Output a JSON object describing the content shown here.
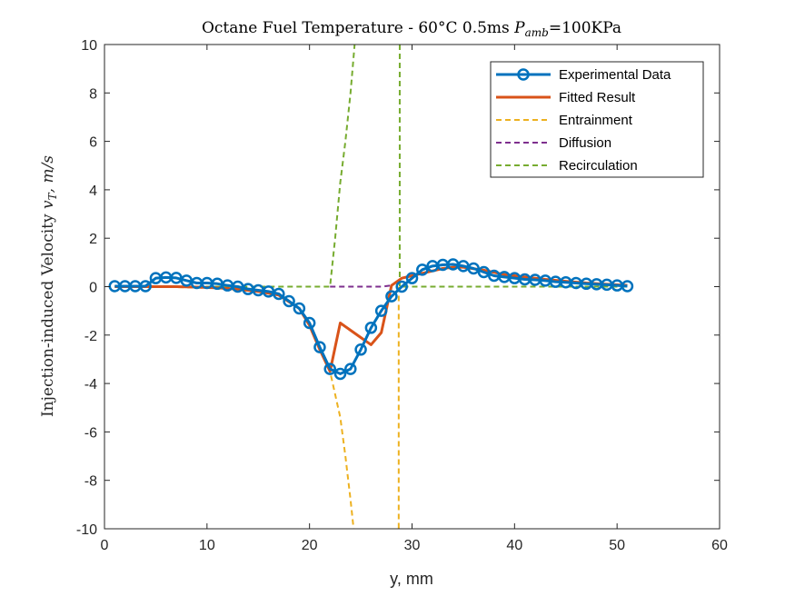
{
  "chart_data": {
    "type": "line",
    "title": {
      "prefix": "Octane Fuel Temperature - 60°C 0.5ms ",
      "p_symbol": "P",
      "p_subscript": "amb",
      "suffix": "=100KPa"
    },
    "xlabel": "y, mm",
    "ylabel": {
      "text": "Injection-induced Velocity ",
      "var": "v",
      "var_subscript": "T",
      "units": ", m/s"
    },
    "xlim": [
      0,
      60
    ],
    "ylim": [
      -10,
      10
    ],
    "xticks": [
      0,
      10,
      20,
      30,
      40,
      50,
      60
    ],
    "yticks": [
      -10,
      -8,
      -6,
      -4,
      -2,
      0,
      2,
      4,
      6,
      8,
      10
    ],
    "grid": false,
    "legend_position": "top-right",
    "series": [
      {
        "name": "Experimental Data",
        "color": "#0072BD",
        "style": "solid-circle-markers",
        "x": [
          1,
          2,
          3,
          4,
          5,
          6,
          7,
          8,
          9,
          10,
          11,
          12,
          13,
          14,
          15,
          16,
          17,
          18,
          19,
          20,
          21,
          22,
          23,
          24,
          25,
          26,
          27,
          28,
          29,
          30,
          31,
          32,
          33,
          34,
          35,
          36,
          37,
          38,
          39,
          40,
          41,
          42,
          43,
          44,
          45,
          46,
          47,
          48,
          49,
          50,
          51
        ],
        "y": [
          0.02,
          0.02,
          0.02,
          0.02,
          0.35,
          0.38,
          0.36,
          0.25,
          0.15,
          0.15,
          0.12,
          0.05,
          0.0,
          -0.1,
          -0.15,
          -0.2,
          -0.3,
          -0.6,
          -0.9,
          -1.5,
          -2.5,
          -3.4,
          -3.6,
          -3.4,
          -2.6,
          -1.7,
          -1.0,
          -0.4,
          0.0,
          0.35,
          0.7,
          0.85,
          0.9,
          0.92,
          0.85,
          0.75,
          0.6,
          0.45,
          0.4,
          0.35,
          0.3,
          0.28,
          0.25,
          0.2,
          0.18,
          0.15,
          0.12,
          0.1,
          0.08,
          0.05,
          0.02
        ]
      },
      {
        "name": "Fitted Result",
        "color": "#D95319",
        "style": "solid-thick",
        "x": [
          1,
          3,
          5,
          7,
          9,
          11,
          13,
          15,
          17,
          19,
          20,
          21,
          22,
          23,
          24,
          25,
          26,
          27,
          28,
          29,
          30,
          31,
          32,
          33,
          34,
          35,
          37,
          39,
          41,
          43,
          45,
          47,
          49,
          51
        ],
        "y": [
          0.0,
          0.0,
          0.0,
          0.0,
          -0.02,
          -0.05,
          -0.1,
          -0.2,
          -0.35,
          -0.9,
          -1.6,
          -2.6,
          -3.5,
          -1.5,
          -1.8,
          -2.1,
          -2.4,
          -1.9,
          0.05,
          0.35,
          0.45,
          0.55,
          0.65,
          0.75,
          0.8,
          0.8,
          0.68,
          0.5,
          0.4,
          0.3,
          0.22,
          0.15,
          0.1,
          0.05
        ]
      },
      {
        "name": "Entrainment",
        "color": "#EDB120",
        "style": "dashed",
        "x": [
          1,
          5,
          10,
          15,
          17,
          19,
          20,
          21,
          22,
          23,
          23.5,
          24,
          24.3
        ],
        "y": [
          0.0,
          0.0,
          -0.05,
          -0.2,
          -0.35,
          -0.9,
          -1.6,
          -2.6,
          -3.5,
          -5.4,
          -7.0,
          -8.8,
          -10.0
        ]
      },
      {
        "name": "Diffusion",
        "color": "#7E2F8E",
        "style": "dashed",
        "x": [
          22,
          23,
          24,
          25,
          26,
          27,
          28,
          29,
          30,
          31,
          32,
          33,
          34,
          35,
          37,
          39,
          41,
          43,
          45,
          47,
          49,
          51
        ],
        "y": [
          0.0,
          0.0,
          0.0,
          0.0,
          0.0,
          0.0,
          0.05,
          0.35,
          0.45,
          0.55,
          0.65,
          0.75,
          0.8,
          0.8,
          0.68,
          0.5,
          0.4,
          0.3,
          0.22,
          0.15,
          0.1,
          0.05
        ]
      },
      {
        "name": "Recirculation",
        "color": "#77AC30",
        "style": "dashed",
        "x": [
          1,
          5,
          10,
          15,
          20,
          22,
          22.5,
          23,
          23.5,
          24,
          24.4
        ],
        "y": [
          0,
          0,
          0,
          0,
          0,
          0,
          2.0,
          4.3,
          6.0,
          8.0,
          10.0
        ]
      },
      {
        "name": "Recirculation (right branch)",
        "color": "#77AC30",
        "style": "dashed",
        "x": [
          28.8,
          28.8,
          29,
          30,
          35,
          40,
          45,
          50,
          51
        ],
        "y": [
          10,
          0.0,
          0,
          0,
          0,
          0,
          0,
          0,
          0
        ]
      },
      {
        "name": "Entrainment (right branch)",
        "color": "#EDB120",
        "style": "dashed",
        "x": [
          28.7,
          28.7
        ],
        "y": [
          0.0,
          -10
        ]
      }
    ],
    "legend_entries": [
      "Experimental Data",
      "Fitted Result",
      "Entrainment",
      "Diffusion",
      "Recirculation"
    ]
  }
}
